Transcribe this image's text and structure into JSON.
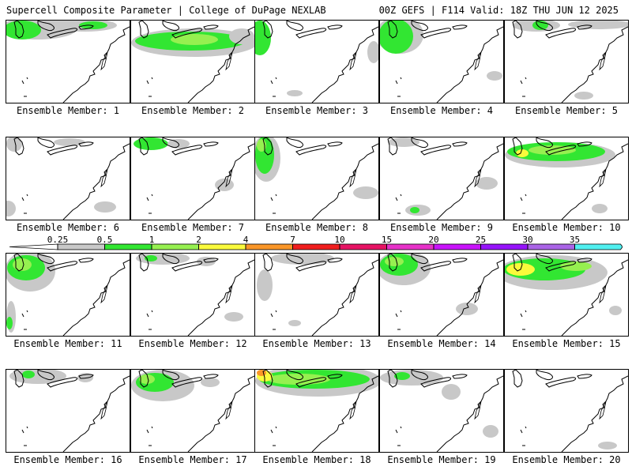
{
  "header": {
    "left": "Supercell Composite Parameter | College of DuPage NEXLAB",
    "right": "00Z GEFS | F114 Valid: 18Z THU JUN 12 2025"
  },
  "members": [
    {
      "label": "Ensemble Member: 1"
    },
    {
      "label": "Ensemble Member: 2"
    },
    {
      "label": "Ensemble Member: 3"
    },
    {
      "label": "Ensemble Member: 4"
    },
    {
      "label": "Ensemble Member: 5"
    },
    {
      "label": "Ensemble Member: 6"
    },
    {
      "label": "Ensemble Member: 7"
    },
    {
      "label": "Ensemble Member: 8"
    },
    {
      "label": "Ensemble Member: 9"
    },
    {
      "label": "Ensemble Member: 10"
    },
    {
      "label": "Ensemble Member: 11"
    },
    {
      "label": "Ensemble Member: 12"
    },
    {
      "label": "Ensemble Member: 13"
    },
    {
      "label": "Ensemble Member: 14"
    },
    {
      "label": "Ensemble Member: 15"
    },
    {
      "label": "Ensemble Member: 16"
    },
    {
      "label": "Ensemble Member: 17"
    },
    {
      "label": "Ensemble Member: 18"
    },
    {
      "label": "Ensemble Member: 19"
    },
    {
      "label": "Ensemble Member: 20"
    }
  ],
  "colorbar": {
    "ticks": [
      "0.25",
      "0.5",
      "1",
      "2",
      "4",
      "7",
      "10",
      "15",
      "20",
      "25",
      "30",
      "35"
    ],
    "colors": [
      "#c8c8c8",
      "#32e632",
      "#96f050",
      "#fafa3c",
      "#fa9628",
      "#f01e1e",
      "#e61464",
      "#e632c8",
      "#c814fa",
      "#9614fa",
      "#aa64e6",
      "#50f0f0"
    ],
    "below_color": "#ffffff"
  }
}
